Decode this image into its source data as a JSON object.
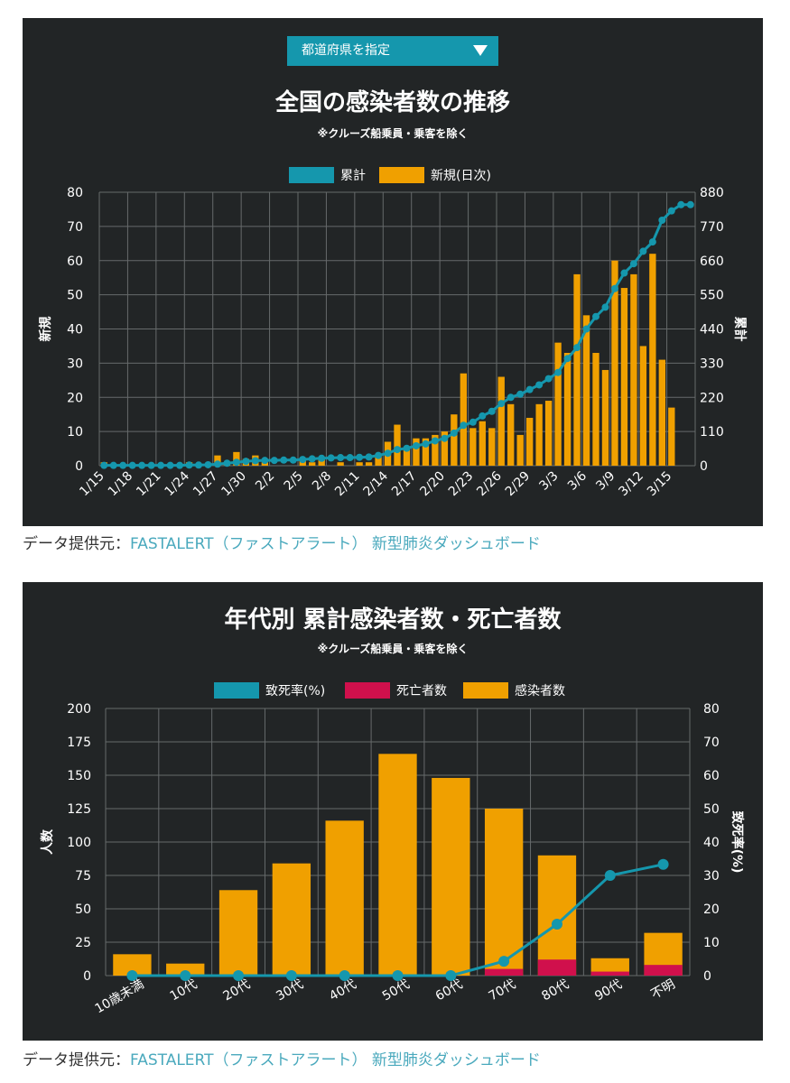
{
  "selector": {
    "label": "都道府県を指定"
  },
  "credit": {
    "prefix": "データ提供元：",
    "link": "FASTALERT（ファストアラート） 新型肺炎ダッシュボード"
  },
  "colors": {
    "panel_bg": "#222526",
    "cumulative": "#1597ad",
    "new": "#f0a000",
    "deaths": "#d0104c",
    "grid": "#666a6b",
    "text": "#ffffff"
  },
  "chart_data": [
    {
      "type": "bar",
      "title": "全国の感染者数の推移",
      "subtitle": "※クルーズ船乗員・乗客を除く",
      "legend": [
        "累計",
        "新規(日次)"
      ],
      "legend_position": "top",
      "ylabel_left": "新規",
      "ylabel_right": "累計",
      "ylim_left": [
        0,
        80
      ],
      "ylim_right": [
        0,
        880
      ],
      "yticks_left": [
        "0",
        "10",
        "20",
        "30",
        "40",
        "50",
        "60",
        "70",
        "80"
      ],
      "yticks_right": [
        "0",
        "110",
        "220",
        "330",
        "440",
        "550",
        "660",
        "770",
        "880"
      ],
      "xtick_labels": [
        "1/15",
        "1/18",
        "1/21",
        "1/24",
        "1/27",
        "1/30",
        "2/2",
        "2/5",
        "2/8",
        "2/11",
        "2/14",
        "2/17",
        "2/20",
        "2/23",
        "2/26",
        "2/29",
        "3/3",
        "3/6",
        "3/9",
        "3/12",
        "3/15"
      ],
      "dates": [
        "1/15",
        "1/16",
        "1/17",
        "1/18",
        "1/19",
        "1/20",
        "1/21",
        "1/22",
        "1/23",
        "1/24",
        "1/25",
        "1/26",
        "1/27",
        "1/28",
        "1/29",
        "1/30",
        "1/31",
        "2/1",
        "2/2",
        "2/3",
        "2/4",
        "2/5",
        "2/6",
        "2/7",
        "2/8",
        "2/9",
        "2/10",
        "2/11",
        "2/12",
        "2/13",
        "2/14",
        "2/15",
        "2/16",
        "2/17",
        "2/18",
        "2/19",
        "2/20",
        "2/21",
        "2/22",
        "2/23",
        "2/24",
        "2/25",
        "2/26",
        "2/27",
        "2/28",
        "2/29",
        "3/1",
        "3/2",
        "3/3",
        "3/4",
        "3/5",
        "3/6",
        "3/7",
        "3/8",
        "3/9",
        "3/10",
        "3/11",
        "3/12",
        "3/13",
        "3/14",
        "3/15",
        "3/16",
        "3/17"
      ],
      "grid": true,
      "series": [
        {
          "name": "新規(日次)",
          "type": "bar",
          "axis": "left",
          "values": [
            1,
            0,
            0,
            0,
            0,
            0,
            0,
            0,
            0,
            1,
            0,
            0,
            3,
            1,
            4,
            2,
            3,
            1,
            0,
            0,
            0,
            2,
            1,
            2,
            0,
            1,
            0,
            1,
            1,
            3,
            7,
            12,
            5,
            8,
            8,
            9,
            10,
            15,
            27,
            11,
            13,
            11,
            26,
            18,
            9,
            14,
            18,
            19,
            36,
            33,
            56,
            44,
            33,
            28,
            60,
            52,
            56,
            35,
            62,
            31,
            17,
            0,
            0
          ]
        },
        {
          "name": "累計",
          "type": "line",
          "axis": "right",
          "values": [
            1,
            1,
            1,
            1,
            1,
            1,
            1,
            1,
            1,
            2,
            2,
            3,
            5,
            8,
            11,
            14,
            16,
            17,
            17,
            18,
            18,
            20,
            22,
            24,
            25,
            26,
            26,
            27,
            28,
            33,
            40,
            52,
            56,
            64,
            70,
            80,
            88,
            105,
            130,
            140,
            160,
            175,
            200,
            220,
            230,
            245,
            260,
            280,
            300,
            345,
            380,
            440,
            480,
            510,
            570,
            620,
            650,
            690,
            720,
            790,
            820,
            840,
            840
          ]
        }
      ]
    },
    {
      "type": "bar",
      "title": "年代別 累計感染者数・死亡者数",
      "subtitle": "※クルーズ船乗員・乗客を除く",
      "legend": [
        "致死率(%)",
        "死亡者数",
        "感染者数"
      ],
      "legend_position": "top",
      "ylabel_left": "人数",
      "ylabel_right": "致死率(%)",
      "ylim_left": [
        0,
        200
      ],
      "ylim_right": [
        0,
        80
      ],
      "yticks_left": [
        "0",
        "25",
        "50",
        "75",
        "100",
        "125",
        "150",
        "175",
        "200"
      ],
      "yticks_right": [
        "0",
        "10",
        "20",
        "30",
        "40",
        "50",
        "60",
        "70",
        "80"
      ],
      "categories": [
        "10歳未満",
        "10代",
        "20代",
        "30代",
        "40代",
        "50代",
        "60代",
        "70代",
        "80代",
        "90代",
        "不明"
      ],
      "grid": true,
      "series": [
        {
          "name": "感染者数",
          "type": "bar",
          "axis": "left",
          "values": [
            16,
            9,
            64,
            84,
            116,
            166,
            148,
            125,
            90,
            13,
            32
          ]
        },
        {
          "name": "死亡者数",
          "type": "bar",
          "axis": "left",
          "values": [
            0,
            0,
            0,
            0,
            0,
            0,
            0,
            5,
            12,
            3,
            8
          ]
        },
        {
          "name": "致死率(%)",
          "type": "line",
          "axis": "right",
          "values": [
            0,
            0,
            0,
            0,
            0,
            0,
            0,
            4.3,
            15.4,
            30,
            33.3
          ]
        }
      ]
    }
  ]
}
